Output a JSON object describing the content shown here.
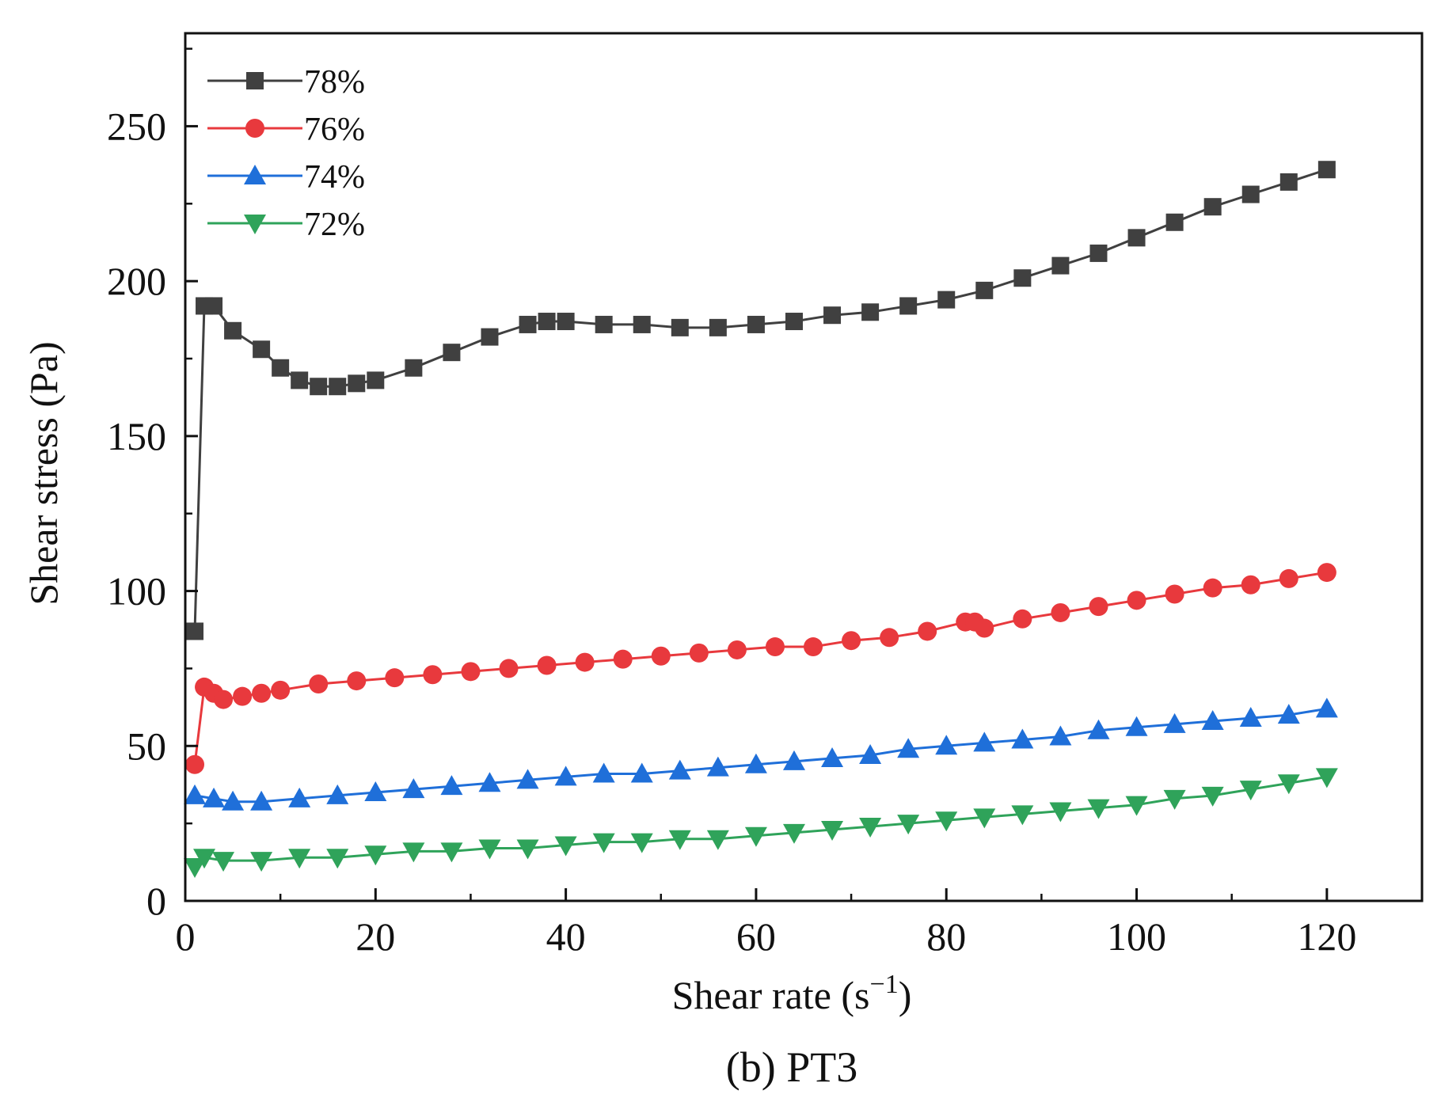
{
  "chart_data": {
    "type": "line",
    "xlabel": "Shear rate (s",
    "xlabel_sup": "−1",
    "xlabel_end": ")",
    "ylabel": "Shear stress (Pa)",
    "caption": "(b) PT3",
    "xlim": [
      0,
      130
    ],
    "ylim": [
      0,
      280
    ],
    "xticks": [
      0,
      20,
      40,
      60,
      80,
      100,
      120
    ],
    "yticks": [
      0,
      50,
      100,
      150,
      200,
      250
    ],
    "legend_position": "top-left",
    "grid": false,
    "series": [
      {
        "name": "78%",
        "color": "#404040",
        "marker": "square",
        "x": [
          1,
          2,
          3,
          5,
          8,
          10,
          12,
          14,
          16,
          18,
          20,
          24,
          28,
          32,
          36,
          38,
          40,
          44,
          48,
          52,
          56,
          60,
          64,
          68,
          72,
          76,
          80,
          84,
          88,
          92,
          96,
          100,
          104,
          108,
          112,
          116,
          120
        ],
        "y": [
          87,
          192,
          192,
          184,
          178,
          172,
          168,
          166,
          166,
          167,
          168,
          172,
          177,
          182,
          186,
          187,
          187,
          186,
          186,
          185,
          185,
          186,
          187,
          189,
          190,
          192,
          194,
          197,
          201,
          205,
          209,
          214,
          219,
          224,
          228,
          232,
          236
        ]
      },
      {
        "name": "76%",
        "color": "#e8393d",
        "marker": "circle",
        "x": [
          1,
          2,
          3,
          4,
          6,
          8,
          10,
          14,
          18,
          22,
          26,
          30,
          34,
          38,
          42,
          46,
          50,
          54,
          58,
          62,
          66,
          70,
          74,
          78,
          82,
          83,
          84,
          88,
          92,
          96,
          100,
          104,
          108,
          112,
          116,
          120
        ],
        "y": [
          44,
          69,
          67,
          65,
          66,
          67,
          68,
          70,
          71,
          72,
          73,
          74,
          75,
          76,
          77,
          78,
          79,
          80,
          81,
          82,
          82,
          84,
          85,
          87,
          90,
          90,
          88,
          91,
          93,
          95,
          97,
          99,
          101,
          102,
          104,
          106
        ]
      },
      {
        "name": "74%",
        "color": "#1f6fd9",
        "marker": "triangle-up",
        "x": [
          1,
          3,
          5,
          8,
          12,
          16,
          20,
          24,
          28,
          32,
          36,
          40,
          44,
          48,
          52,
          56,
          60,
          64,
          68,
          72,
          76,
          80,
          84,
          88,
          92,
          96,
          100,
          104,
          108,
          112,
          116,
          120
        ],
        "y": [
          34,
          33,
          32,
          32,
          33,
          34,
          35,
          36,
          37,
          38,
          39,
          40,
          41,
          41,
          42,
          43,
          44,
          45,
          46,
          47,
          49,
          50,
          51,
          52,
          53,
          55,
          56,
          57,
          58,
          59,
          60,
          62
        ]
      },
      {
        "name": "72%",
        "color": "#2fa35a",
        "marker": "triangle-down",
        "x": [
          1,
          2,
          4,
          8,
          12,
          16,
          20,
          24,
          28,
          32,
          36,
          40,
          44,
          48,
          52,
          56,
          60,
          64,
          68,
          72,
          76,
          80,
          84,
          88,
          92,
          96,
          100,
          104,
          108,
          112,
          116,
          120
        ],
        "y": [
          11,
          14,
          13,
          13,
          14,
          14,
          15,
          16,
          16,
          17,
          17,
          18,
          19,
          19,
          20,
          20,
          21,
          22,
          23,
          24,
          25,
          26,
          27,
          28,
          29,
          30,
          31,
          33,
          34,
          36,
          38,
          40
        ]
      }
    ]
  }
}
